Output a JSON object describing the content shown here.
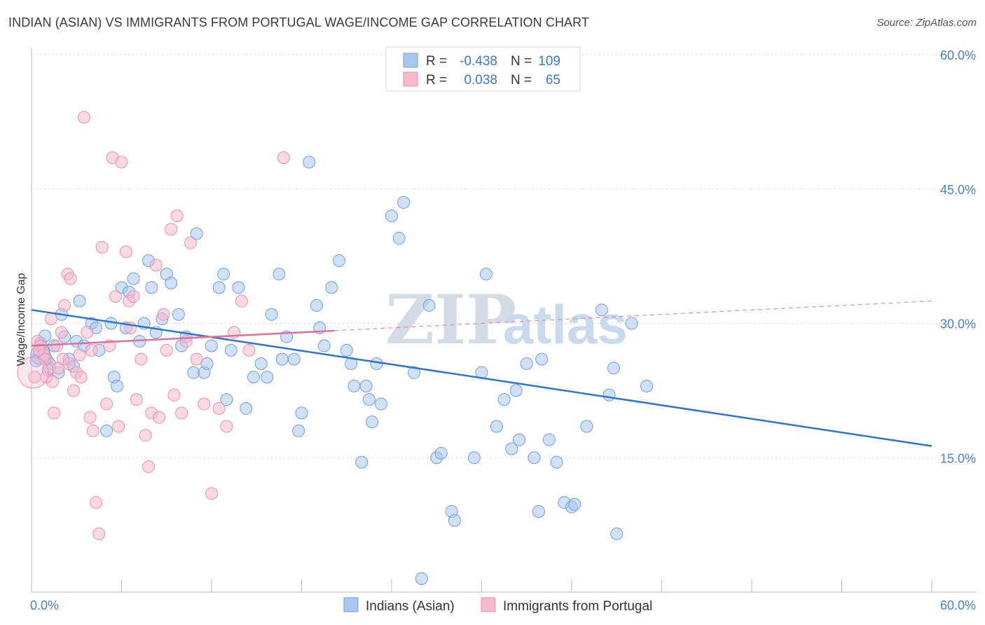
{
  "title": "INDIAN (ASIAN) VS IMMIGRANTS FROM PORTUGAL WAGE/INCOME GAP CORRELATION CHART",
  "source": "Source: ZipAtlas.com",
  "watermark": {
    "zip": "ZIP",
    "atlas": "atlas"
  },
  "legend_top": {
    "rows": [
      {
        "r_label": "R =",
        "r_value": "-0.438",
        "n_label": "N =",
        "n_value": "109"
      },
      {
        "r_label": "R =",
        "r_value": "0.038",
        "n_label": "N =",
        "n_value": "65"
      }
    ]
  },
  "chart_data": {
    "type": "scatter",
    "title": "INDIAN (ASIAN) VS IMMIGRANTS FROM PORTUGAL WAGE/INCOME GAP CORRELATION CHART",
    "xlabel": "",
    "ylabel": "Wage/Income Gap",
    "xlim": [
      0,
      60
    ],
    "ylim": [
      0,
      60
    ],
    "x_tick_labels": [
      "0.0%",
      "60.0%"
    ],
    "y_ticks": [
      15,
      30,
      45,
      60
    ],
    "y_tick_labels": [
      "15.0%",
      "30.0%",
      "45.0%",
      "60.0%"
    ],
    "grid": true,
    "legend_position": "top-center",
    "series": [
      {
        "name": "Indians (Asian)",
        "color": "#a9c6ef",
        "edge_color": "#6f9fe0",
        "line_color": "#2f74d0",
        "trend": {
          "x": [
            0,
            60
          ],
          "y": [
            31.5,
            16.3
          ],
          "dashed_from": null
        },
        "points": [
          [
            0.5,
            26.5
          ],
          [
            0.8,
            27.0
          ],
          [
            1.0,
            26.0
          ],
          [
            1.2,
            25.5
          ],
          [
            1.5,
            27.5
          ],
          [
            1.8,
            24.5
          ],
          [
            2.0,
            31.0
          ],
          [
            2.2,
            28.5
          ],
          [
            2.5,
            26.0
          ],
          [
            3.0,
            28.0
          ],
          [
            3.2,
            32.5
          ],
          [
            3.5,
            27.5
          ],
          [
            4.0,
            30.0
          ],
          [
            4.3,
            29.5
          ],
          [
            4.5,
            27.0
          ],
          [
            5.0,
            18.0
          ],
          [
            5.3,
            30.0
          ],
          [
            5.5,
            24.0
          ],
          [
            5.7,
            23.0
          ],
          [
            6.0,
            34.0
          ],
          [
            6.3,
            29.5
          ],
          [
            6.5,
            33.5
          ],
          [
            6.8,
            35.0
          ],
          [
            7.2,
            28.0
          ],
          [
            7.5,
            30.0
          ],
          [
            7.8,
            37.0
          ],
          [
            8.0,
            34.0
          ],
          [
            8.3,
            29.0
          ],
          [
            8.7,
            30.5
          ],
          [
            9.0,
            35.5
          ],
          [
            9.3,
            34.5
          ],
          [
            9.8,
            31.0
          ],
          [
            10.0,
            27.5
          ],
          [
            10.3,
            28.5
          ],
          [
            10.8,
            24.5
          ],
          [
            11.0,
            40.0
          ],
          [
            11.5,
            24.5
          ],
          [
            11.7,
            25.5
          ],
          [
            12.0,
            27.5
          ],
          [
            12.5,
            34.0
          ],
          [
            12.8,
            35.5
          ],
          [
            13.0,
            21.5
          ],
          [
            13.3,
            27.0
          ],
          [
            13.8,
            34.0
          ],
          [
            14.3,
            20.5
          ],
          [
            14.8,
            24.0
          ],
          [
            15.3,
            25.5
          ],
          [
            15.7,
            24.0
          ],
          [
            16.0,
            31.0
          ],
          [
            16.5,
            35.5
          ],
          [
            16.7,
            26.0
          ],
          [
            17.0,
            28.5
          ],
          [
            17.5,
            26.0
          ],
          [
            17.8,
            18.0
          ],
          [
            18.0,
            20.0
          ],
          [
            18.5,
            48.0
          ],
          [
            19.0,
            32.0
          ],
          [
            19.2,
            29.5
          ],
          [
            19.5,
            27.5
          ],
          [
            20.0,
            34.0
          ],
          [
            20.5,
            37.0
          ],
          [
            21.0,
            27.0
          ],
          [
            21.3,
            25.5
          ],
          [
            21.5,
            23.0
          ],
          [
            22.0,
            14.5
          ],
          [
            22.3,
            23.0
          ],
          [
            22.5,
            21.5
          ],
          [
            22.7,
            19.0
          ],
          [
            23.0,
            25.5
          ],
          [
            23.3,
            21.0
          ],
          [
            24.0,
            42.0
          ],
          [
            24.5,
            39.5
          ],
          [
            24.8,
            43.5
          ],
          [
            25.5,
            24.5
          ],
          [
            26.0,
            1.5
          ],
          [
            26.5,
            32.0
          ],
          [
            27.0,
            15.0
          ],
          [
            27.3,
            15.5
          ],
          [
            28.0,
            9.0
          ],
          [
            28.2,
            8.0
          ],
          [
            29.5,
            15.0
          ],
          [
            30.0,
            24.5
          ],
          [
            30.3,
            35.5
          ],
          [
            31.0,
            18.5
          ],
          [
            31.5,
            21.5
          ],
          [
            32.0,
            16.0
          ],
          [
            32.3,
            22.5
          ],
          [
            32.5,
            17.0
          ],
          [
            33.0,
            25.5
          ],
          [
            33.5,
            15.0
          ],
          [
            33.8,
            9.0
          ],
          [
            34.0,
            26.0
          ],
          [
            34.5,
            17.0
          ],
          [
            35.0,
            14.5
          ],
          [
            35.5,
            10.0
          ],
          [
            36.0,
            9.5
          ],
          [
            36.2,
            9.8
          ],
          [
            37.0,
            18.5
          ],
          [
            38.0,
            31.5
          ],
          [
            38.5,
            22.0
          ],
          [
            38.8,
            25.0
          ],
          [
            39.0,
            6.5
          ],
          [
            40.0,
            30.0
          ],
          [
            41.0,
            23.0
          ],
          [
            0.3,
            25.8
          ],
          [
            0.6,
            27.8
          ],
          [
            1.1,
            24.8
          ],
          [
            0.9,
            28.6
          ],
          [
            2.8,
            25.2
          ]
        ]
      },
      {
        "name": "Immigrants from Portugal",
        "color": "#f6b9cc",
        "edge_color": "#ee8fae",
        "line_color": "#e0709a",
        "trend": {
          "x": [
            0,
            60
          ],
          "y": [
            27.5,
            32.5
          ],
          "solid_until": 20.2
        },
        "points": [
          [
            0.2,
            24.0
          ],
          [
            0.4,
            28.0
          ],
          [
            0.6,
            27.5
          ],
          [
            0.8,
            26.5
          ],
          [
            1.0,
            24.0
          ],
          [
            1.2,
            25.0
          ],
          [
            1.3,
            30.5
          ],
          [
            1.5,
            20.0
          ],
          [
            1.8,
            25.0
          ],
          [
            2.0,
            29.0
          ],
          [
            2.2,
            32.0
          ],
          [
            2.4,
            35.5
          ],
          [
            2.6,
            35.0
          ],
          [
            2.8,
            22.5
          ],
          [
            3.0,
            24.5
          ],
          [
            3.2,
            26.5
          ],
          [
            3.5,
            53.0
          ],
          [
            3.7,
            29.0
          ],
          [
            3.9,
            19.5
          ],
          [
            4.1,
            18.0
          ],
          [
            4.3,
            10.0
          ],
          [
            4.5,
            6.5
          ],
          [
            4.7,
            38.5
          ],
          [
            5.0,
            21.0
          ],
          [
            5.2,
            27.5
          ],
          [
            5.4,
            48.5
          ],
          [
            5.6,
            33.0
          ],
          [
            5.8,
            18.5
          ],
          [
            6.0,
            48.0
          ],
          [
            6.3,
            38.0
          ],
          [
            6.5,
            32.5
          ],
          [
            6.8,
            33.0
          ],
          [
            7.0,
            21.5
          ],
          [
            7.3,
            26.0
          ],
          [
            7.6,
            17.5
          ],
          [
            7.8,
            14.0
          ],
          [
            8.0,
            20.0
          ],
          [
            8.3,
            36.5
          ],
          [
            8.5,
            19.5
          ],
          [
            8.8,
            31.0
          ],
          [
            9.0,
            27.0
          ],
          [
            9.3,
            40.5
          ],
          [
            9.7,
            42.0
          ],
          [
            10.0,
            20.0
          ],
          [
            10.3,
            28.0
          ],
          [
            10.6,
            39.0
          ],
          [
            11.0,
            26.0
          ],
          [
            11.5,
            21.0
          ],
          [
            12.0,
            11.0
          ],
          [
            12.5,
            20.5
          ],
          [
            13.0,
            18.5
          ],
          [
            13.5,
            29.0
          ],
          [
            14.0,
            32.5
          ],
          [
            14.5,
            27.0
          ],
          [
            16.8,
            48.5
          ],
          [
            0.5,
            27.0
          ],
          [
            0.9,
            26.0
          ],
          [
            1.4,
            23.5
          ],
          [
            1.7,
            27.5
          ],
          [
            2.1,
            26.0
          ],
          [
            2.5,
            25.5
          ],
          [
            3.3,
            24.0
          ],
          [
            4.0,
            27.0
          ],
          [
            6.6,
            29.5
          ],
          [
            9.5,
            22.0
          ]
        ]
      }
    ]
  },
  "bottom_legend": {
    "items": [
      {
        "label": "Indians (Asian)"
      },
      {
        "label": "Immigrants from Portugal"
      }
    ]
  }
}
